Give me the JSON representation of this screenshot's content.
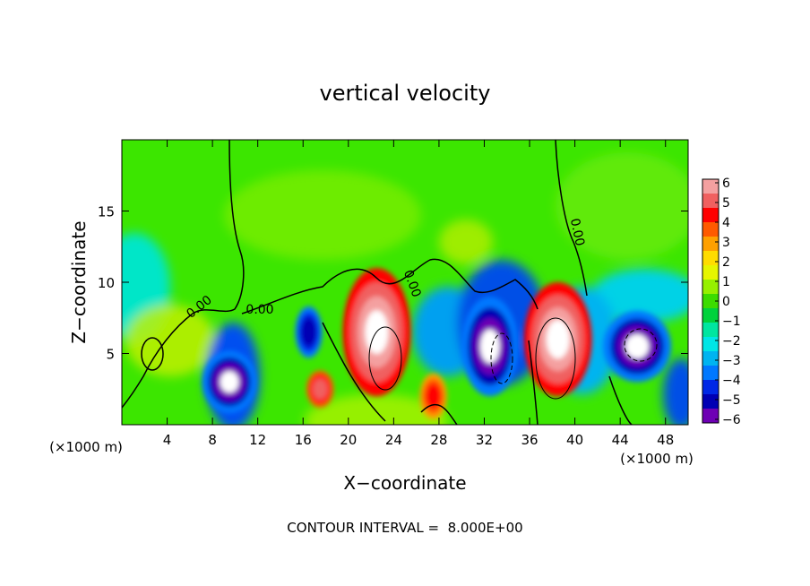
{
  "chart_data": {
    "type": "heatmap",
    "title": "vertical velocity",
    "xlabel": "X−coordinate",
    "ylabel": "Z−coordinate",
    "x_unit_left": "(×1000 m)",
    "x_unit_right": "(×1000 m)",
    "x_ticks": [
      4,
      8,
      12,
      16,
      20,
      24,
      28,
      32,
      36,
      40,
      44,
      48
    ],
    "y_ticks": [
      5,
      10,
      15
    ],
    "xlim": [
      0,
      50
    ],
    "ylim": [
      0,
      20
    ],
    "contour_label": "0.00",
    "colorbar": {
      "ticks": [
        "6",
        "5",
        "4",
        "3",
        "2",
        "1",
        "0",
        "−1",
        "−2",
        "−3",
        "−4",
        "−5",
        "−6"
      ],
      "range": [
        -6,
        6
      ],
      "colors": [
        "#f4a0a0",
        "#f06060",
        "#ff0000",
        "#ff5a00",
        "#ffa000",
        "#ffdc00",
        "#e6f500",
        "#96f000",
        "#3cdc00",
        "#00d23c",
        "#00e6a0",
        "#00e6e6",
        "#00b4f0",
        "#0078ff",
        "#0028e6",
        "#0000b4",
        "#6e00b4"
      ]
    },
    "cells": [
      {
        "x": 9.5,
        "z": 3.0,
        "rx": 2.4,
        "rz": 2.2,
        "v": -6
      },
      {
        "x": 16.5,
        "z": 6.5,
        "rx": 1.2,
        "rz": 1.8,
        "v": -4.5
      },
      {
        "x": 17.5,
        "z": 2.5,
        "rx": 1.2,
        "rz": 1.3,
        "v": 4
      },
      {
        "x": 22.5,
        "z": 6.5,
        "rx": 3.0,
        "rz": 4.5,
        "v": 6
      },
      {
        "x": 27.5,
        "z": 2.0,
        "rx": 1.2,
        "rz": 1.6,
        "v": 3
      },
      {
        "x": 32.5,
        "z": 5.5,
        "rx": 2.5,
        "rz": 3.5,
        "v": -6
      },
      {
        "x": 38.5,
        "z": 6.0,
        "rx": 3.0,
        "rz": 4.0,
        "v": 6
      },
      {
        "x": 45.5,
        "z": 5.5,
        "rx": 3.0,
        "rz": 2.5,
        "v": -6
      }
    ]
  },
  "footer": {
    "contour_interval": "CONTOUR INTERVAL =  8.000E+00"
  }
}
